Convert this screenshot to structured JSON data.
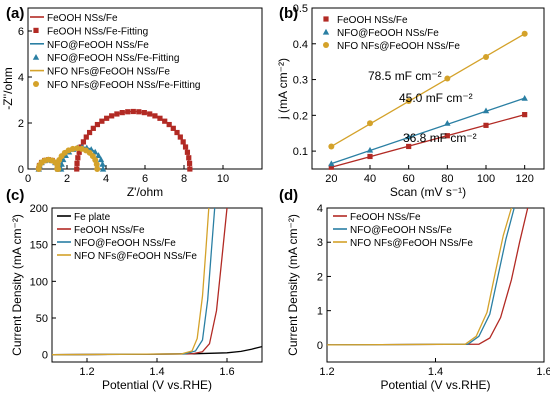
{
  "colors": {
    "feooh": "#b22a24",
    "nfo": "#2a7fa3",
    "nfs": "#d4a22a",
    "fe": "#000000"
  },
  "chart_data": [
    {
      "panel": "a",
      "type": "scatter",
      "panel_label": "(a)",
      "xlabel": "Z'/ohm",
      "ylabel": "-Z''/ohm",
      "xlim": [
        0,
        12
      ],
      "ylim": [
        0,
        7
      ],
      "xticks": [
        0,
        2,
        4,
        6,
        8,
        10
      ],
      "yticks": [
        0,
        2,
        4,
        6
      ],
      "legend_position": "top-left",
      "series": [
        {
          "name": "FeOOH NSs/Fe",
          "color_key": "feooh",
          "kind": "line",
          "arc": {
            "x0": 2.5,
            "x1": 8.3,
            "height": 2.5
          }
        },
        {
          "name": "FeOOH NSs/Fe-Fitting",
          "color_key": "feooh",
          "kind": "marker",
          "marker": "square",
          "arc": {
            "x0": 2.5,
            "x1": 8.3,
            "height": 2.5
          }
        },
        {
          "name": "NFO@FeOOH NSs/Fe",
          "color_key": "nfo",
          "kind": "line",
          "arc": {
            "x0": 1.7,
            "x1": 3.85,
            "height": 0.95
          }
        },
        {
          "name": "NFO@FeOOH NSs/Fe-Fitting",
          "color_key": "nfo",
          "kind": "marker",
          "marker": "triangle",
          "arc": {
            "x0": 1.7,
            "x1": 3.85,
            "height": 0.95
          }
        },
        {
          "name": "NFO NFs@FeOOH NSs/Fe",
          "color_key": "nfs",
          "kind": "line",
          "arc": {
            "x0": 1.5,
            "x1": 3.55,
            "height": 0.9
          }
        },
        {
          "name": "NFO NFs@FeOOH NSs/Fe-Fitting",
          "color_key": "nfs",
          "kind": "marker",
          "marker": "circle",
          "arc": {
            "x0": 1.5,
            "x1": 3.55,
            "height": 0.9
          }
        }
      ],
      "small_arc": {
        "x0": 0.55,
        "x1": 1.55,
        "height": 0.4
      }
    },
    {
      "panel": "b",
      "type": "line",
      "panel_label": "(b)",
      "xlabel": "Scan (mV s⁻¹)",
      "ylabel": "j (mA cm⁻²)",
      "xlim": [
        10,
        130
      ],
      "ylim": [
        0.05,
        0.5
      ],
      "xticks": [
        20,
        40,
        60,
        80,
        100,
        120
      ],
      "yticks": [
        0.1,
        0.2,
        0.3,
        0.4,
        0.5
      ],
      "x": [
        20,
        40,
        60,
        80,
        100,
        120
      ],
      "legend_position": "top-left",
      "series": [
        {
          "name": "FeOOH NSs/Fe",
          "color_key": "feooh",
          "marker": "square",
          "values": [
            0.055,
            0.085,
            0.113,
            0.143,
            0.172,
            0.202
          ],
          "annotation": "36.8 mF cm⁻²"
        },
        {
          "name": "NFO@FeOOH NSs/Fe",
          "color_key": "nfo",
          "marker": "triangle",
          "values": [
            0.065,
            0.103,
            0.14,
            0.178,
            0.213,
            0.248
          ],
          "annotation": "45.0 mF cm⁻²"
        },
        {
          "name": "NFO NFs@FeOOH NSs/Fe",
          "color_key": "nfs",
          "marker": "circle",
          "values": [
            0.113,
            0.178,
            0.24,
            0.303,
            0.363,
            0.428
          ],
          "annotation": "78.5 mF cm⁻²"
        }
      ]
    },
    {
      "panel": "c",
      "type": "line",
      "panel_label": "(c)",
      "xlabel": "Potential (V vs.RHE)",
      "ylabel": "Current Density (mA cm⁻²)",
      "xlim": [
        1.1,
        1.7
      ],
      "ylim": [
        -10,
        200
      ],
      "xticks": [
        1.2,
        1.4,
        1.6
      ],
      "yticks": [
        0,
        50,
        100,
        150,
        200
      ],
      "legend_position": "top-left",
      "series": [
        {
          "name": "Fe plate",
          "color_key": "fe",
          "x": [
            1.1,
            1.3,
            1.5,
            1.6,
            1.64,
            1.67,
            1.7
          ],
          "y": [
            0,
            0.4,
            1.2,
            2.5,
            4.5,
            7.5,
            11
          ]
        },
        {
          "name": "FeOOH NSs/Fe",
          "color_key": "feooh",
          "x": [
            1.1,
            1.5,
            1.53,
            1.55,
            1.57,
            1.585,
            1.6
          ],
          "y": [
            0,
            1,
            4,
            15,
            60,
            130,
            200
          ]
        },
        {
          "name": "NFO@FeOOH NSs/Fe",
          "color_key": "nfo",
          "x": [
            1.1,
            1.48,
            1.51,
            1.53,
            1.545,
            1.555,
            1.565
          ],
          "y": [
            0,
            1,
            5,
            20,
            75,
            140,
            200
          ]
        },
        {
          "name": "NFO NFs@FeOOH NSs/Fe",
          "color_key": "nfs",
          "x": [
            1.1,
            1.47,
            1.5,
            1.515,
            1.53,
            1.54,
            1.548
          ],
          "y": [
            0,
            1,
            5,
            22,
            80,
            145,
            200
          ]
        }
      ]
    },
    {
      "panel": "d",
      "type": "line",
      "panel_label": "(d)",
      "xlabel": "Potential (V vs.RHE)",
      "ylabel": "Current Density (mA cm⁻²)",
      "xlim": [
        1.2,
        1.6
      ],
      "ylim": [
        -0.5,
        4
      ],
      "xticks": [
        1.2,
        1.4,
        1.6
      ],
      "yticks": [
        0,
        1,
        2,
        3,
        4
      ],
      "legend_position": "top-left",
      "series": [
        {
          "name": "FeOOH NSs/Fe",
          "color_key": "feooh",
          "x": [
            1.2,
            1.48,
            1.5,
            1.52,
            1.54,
            1.555,
            1.57
          ],
          "y": [
            0,
            0.02,
            0.2,
            0.8,
            1.9,
            3.0,
            4
          ]
        },
        {
          "name": "NFO@FeOOH NSs/Fe",
          "color_key": "nfo",
          "x": [
            1.2,
            1.46,
            1.48,
            1.5,
            1.515,
            1.53,
            1.545
          ],
          "y": [
            0,
            0.02,
            0.25,
            0.9,
            2.0,
            3.1,
            4
          ]
        },
        {
          "name": "NFO NFs@FeOOH NSs/Fe",
          "color_key": "nfs",
          "x": [
            1.2,
            1.455,
            1.475,
            1.495,
            1.51,
            1.525,
            1.54
          ],
          "y": [
            0,
            0.02,
            0.25,
            0.95,
            2.1,
            3.2,
            4
          ]
        }
      ]
    }
  ]
}
